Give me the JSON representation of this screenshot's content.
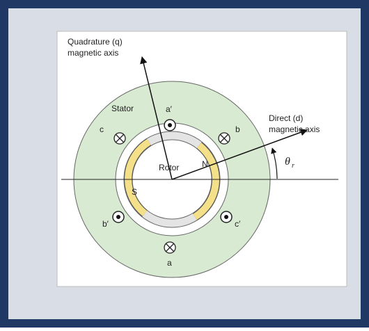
{
  "diagram": {
    "q_axis": [
      "Quadrature (q)",
      "magnetic axis"
    ],
    "d_axis": [
      "Direct (d)",
      "magnetic axis"
    ],
    "stator": "Stator",
    "rotor": "Rotor",
    "poles": {
      "north": "N",
      "south": "S"
    },
    "angle": {
      "symbol": "θ",
      "subscript": "r"
    },
    "coils": {
      "a_prime": "a′",
      "b": "b",
      "c": "c",
      "b_prime": "b′",
      "c_prime": "c′",
      "a": "a"
    }
  }
}
